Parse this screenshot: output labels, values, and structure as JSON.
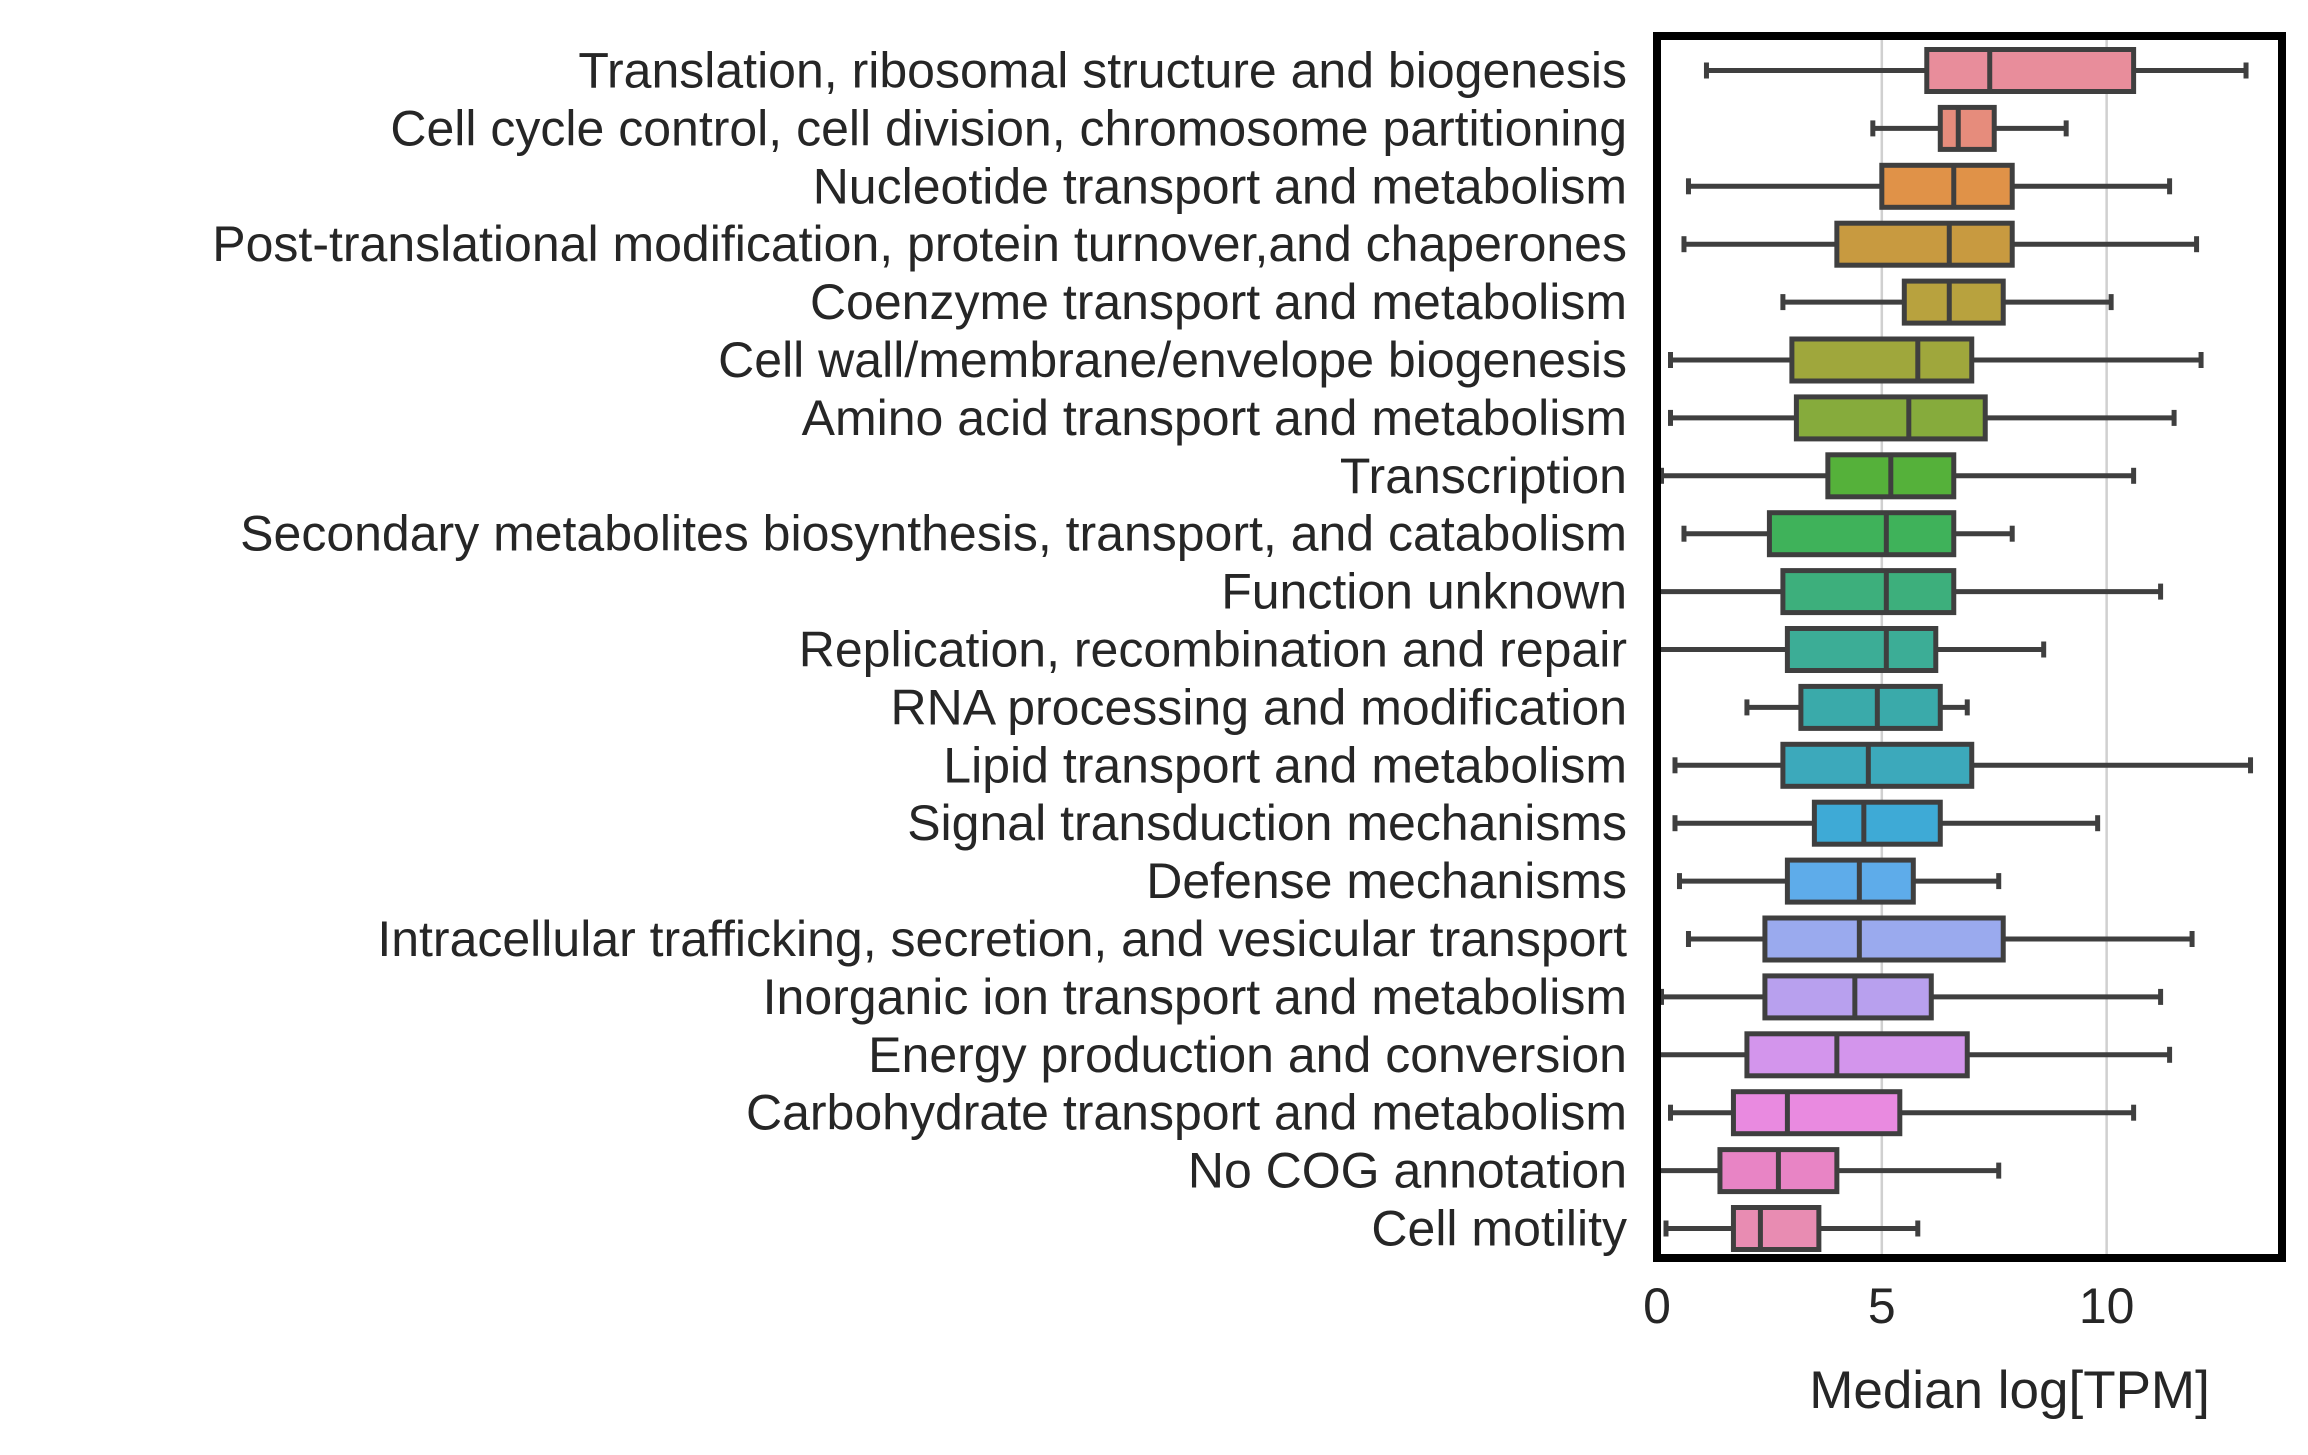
{
  "chart_data": {
    "type": "boxplot",
    "orientation": "horizontal",
    "xlabel": "Median log[TPM]",
    "xlim": [
      0,
      13.9
    ],
    "xticks": [
      0,
      5,
      10
    ],
    "grid": "vertical",
    "whisker_color": "#3f3f3f",
    "categories": [
      {
        "label": "Translation, ribosomal structure and biogenesis",
        "color": "#e88d9b",
        "whislo": 1.1,
        "q1": 6.0,
        "median": 7.4,
        "q3": 10.6,
        "whishi": 13.1
      },
      {
        "label": "Cell cycle control, cell division, chromosome partitioning",
        "color": "#e68c7c",
        "whislo": 4.8,
        "q1": 6.3,
        "median": 6.7,
        "q3": 7.5,
        "whishi": 9.1
      },
      {
        "label": "Nucleotide transport and metabolism",
        "color": "#e09248",
        "whislo": 0.7,
        "q1": 5.0,
        "median": 6.6,
        "q3": 7.9,
        "whishi": 11.4
      },
      {
        "label": "Post-translational modification, protein turnover,and chaperones",
        "color": "#c89a40",
        "whislo": 0.6,
        "q1": 4.0,
        "median": 6.5,
        "q3": 7.9,
        "whishi": 12.0
      },
      {
        "label": "Coenzyme transport and metabolism",
        "color": "#b8a23e",
        "whislo": 2.8,
        "q1": 5.5,
        "median": 6.5,
        "q3": 7.7,
        "whishi": 10.1
      },
      {
        "label": "Cell wall/membrane/envelope biogenesis",
        "color": "#9fa73c",
        "whislo": 0.3,
        "q1": 3.0,
        "median": 5.8,
        "q3": 7.0,
        "whishi": 12.1
      },
      {
        "label": "Amino acid transport and metabolism",
        "color": "#86ab3c",
        "whislo": 0.3,
        "q1": 3.1,
        "median": 5.6,
        "q3": 7.3,
        "whishi": 11.5
      },
      {
        "label": "Transcription",
        "color": "#55b13a",
        "whislo": 0.1,
        "q1": 3.8,
        "median": 5.2,
        "q3": 6.6,
        "whishi": 10.6
      },
      {
        "label": "Secondary metabolites biosynthesis, transport, and catabolism",
        "color": "#3fb25a",
        "whislo": 0.6,
        "q1": 2.5,
        "median": 5.1,
        "q3": 6.6,
        "whishi": 7.9
      },
      {
        "label": "Function unknown",
        "color": "#3daf7c",
        "whislo": 0.0,
        "q1": 2.8,
        "median": 5.1,
        "q3": 6.6,
        "whishi": 11.2
      },
      {
        "label": "Replication, recombination and repair",
        "color": "#3cad96",
        "whislo": 0.0,
        "q1": 2.9,
        "median": 5.1,
        "q3": 6.2,
        "whishi": 8.6
      },
      {
        "label": "RNA processing and modification",
        "color": "#3aaaaa",
        "whislo": 2.0,
        "q1": 3.2,
        "median": 4.9,
        "q3": 6.3,
        "whishi": 6.9
      },
      {
        "label": "Lipid transport and metabolism",
        "color": "#3ca9bb",
        "whislo": 0.4,
        "q1": 2.8,
        "median": 4.7,
        "q3": 7.0,
        "whishi": 13.2
      },
      {
        "label": "Signal transduction mechanisms",
        "color": "#3eaad6",
        "whislo": 0.4,
        "q1": 3.5,
        "median": 4.6,
        "q3": 6.3,
        "whishi": 9.8
      },
      {
        "label": "Defense mechanisms",
        "color": "#5eacea",
        "whislo": 0.5,
        "q1": 2.9,
        "median": 4.5,
        "q3": 5.7,
        "whishi": 7.6
      },
      {
        "label": "Intracellular trafficking, secretion, and vesicular transport",
        "color": "#9aaaee",
        "whislo": 0.7,
        "q1": 2.4,
        "median": 4.5,
        "q3": 7.7,
        "whishi": 11.9
      },
      {
        "label": "Inorganic ion transport and metabolism",
        "color": "#b8a0ee",
        "whislo": 0.1,
        "q1": 2.4,
        "median": 4.4,
        "q3": 6.1,
        "whishi": 11.2
      },
      {
        "label": "Energy production and conversion",
        "color": "#d395ec",
        "whislo": 0.0,
        "q1": 2.0,
        "median": 4.0,
        "q3": 6.9,
        "whishi": 11.4
      },
      {
        "label": "Carbohydrate transport and metabolism",
        "color": "#e98ae0",
        "whislo": 0.3,
        "q1": 1.7,
        "median": 2.9,
        "q3": 5.4,
        "whishi": 10.6
      },
      {
        "label": "No COG annotation",
        "color": "#e884c5",
        "whislo": 0.0,
        "q1": 1.4,
        "median": 2.7,
        "q3": 4.0,
        "whishi": 7.6
      },
      {
        "label": "Cell motility",
        "color": "#e88cb2",
        "whislo": 0.2,
        "q1": 1.7,
        "median": 2.3,
        "q3": 3.6,
        "whishi": 5.8
      }
    ]
  }
}
